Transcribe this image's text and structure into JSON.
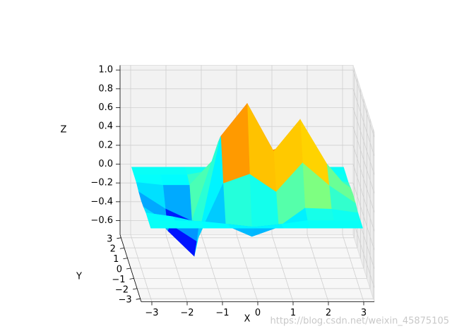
{
  "chart_data": {
    "type": "surface",
    "x": [
      -3,
      -2.25,
      -1.5,
      -0.75,
      0,
      0.75,
      1.5,
      2.25,
      3
    ],
    "y": [
      -3,
      -2.25,
      -1.5,
      -0.75,
      0,
      0.75,
      1.5,
      2.25,
      3
    ],
    "z": [
      [
        0,
        0,
        0,
        -0.02,
        -0.03,
        -0.02,
        0,
        0,
        0
      ],
      [
        0,
        0,
        -0.04,
        -0.2,
        -0.35,
        -0.2,
        -0.03,
        0,
        0
      ],
      [
        0,
        -0.01,
        -0.1,
        -0.38,
        -0.62,
        -0.33,
        -0.03,
        0,
        0
      ],
      [
        0,
        -0.04,
        -0.13,
        0.23,
        0.65,
        0.51,
        0.27,
        0.05,
        0
      ],
      [
        0,
        -0.07,
        -0.25,
        0.33,
        1,
        0.81,
        0.46,
        0.08,
        0
      ],
      [
        0,
        -0.04,
        -0.15,
        0.14,
        0.49,
        0.42,
        0.25,
        0.04,
        0
      ],
      [
        0,
        0,
        0.05,
        0.45,
        0.83,
        0.5,
        0.12,
        0.01,
        0
      ],
      [
        0,
        0,
        0.04,
        0.21,
        0.36,
        0.21,
        0.04,
        0,
        0
      ],
      [
        0,
        0,
        0,
        0.02,
        0.03,
        0.02,
        0,
        0,
        0
      ]
    ],
    "colormap": "jet",
    "xlabel": "X",
    "ylabel": "Y",
    "zlabel": "Z",
    "xlim": [
      -3.3,
      3.3
    ],
    "ylim": [
      -3.3,
      3.3
    ],
    "zlim": [
      -0.75,
      1.05
    ],
    "xticks": [
      {
        "value": -3,
        "label": "−3"
      },
      {
        "value": -2,
        "label": "−2"
      },
      {
        "value": -1,
        "label": "−1"
      },
      0,
      1,
      2,
      3
    ],
    "yticks": [
      {
        "value": -3,
        "label": "−3"
      },
      {
        "value": -2,
        "label": "−2"
      },
      {
        "value": -1,
        "label": "−1"
      },
      0,
      1,
      2,
      3
    ],
    "zticks": [
      {
        "value": -0.6,
        "label": "−0.6"
      },
      {
        "value": -0.4,
        "label": "−0.4"
      },
      {
        "value": -0.2,
        "label": "−0.2"
      },
      {
        "value": 0,
        "label": "0.0"
      },
      0.2,
      0.4,
      0.6,
      0.8,
      {
        "value": 1,
        "label": "1.0"
      }
    ],
    "grid": true,
    "watermark": "https://blog.csdn.net/weixin_45875105"
  }
}
